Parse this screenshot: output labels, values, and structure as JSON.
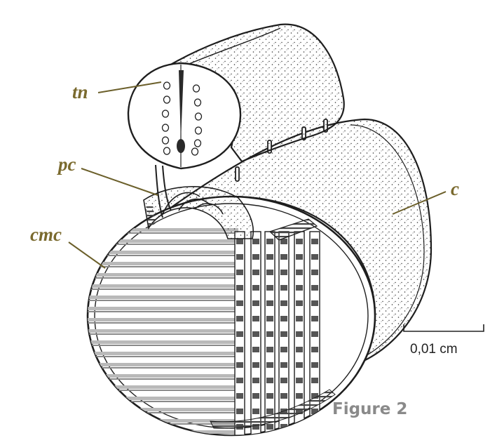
{
  "diagram": {
    "labels": {
      "tn": "tn",
      "pc": "pc",
      "cmc": "cmc",
      "c": "c"
    },
    "scale_bar": {
      "text": "0,01 cm"
    },
    "caption": "Figure 2"
  },
  "colors": {
    "ink": "#1e1e1e",
    "label_color": "#7a6a2e",
    "leader_color": "#6b5f2a",
    "caption_gray": "#8a8a8a"
  }
}
